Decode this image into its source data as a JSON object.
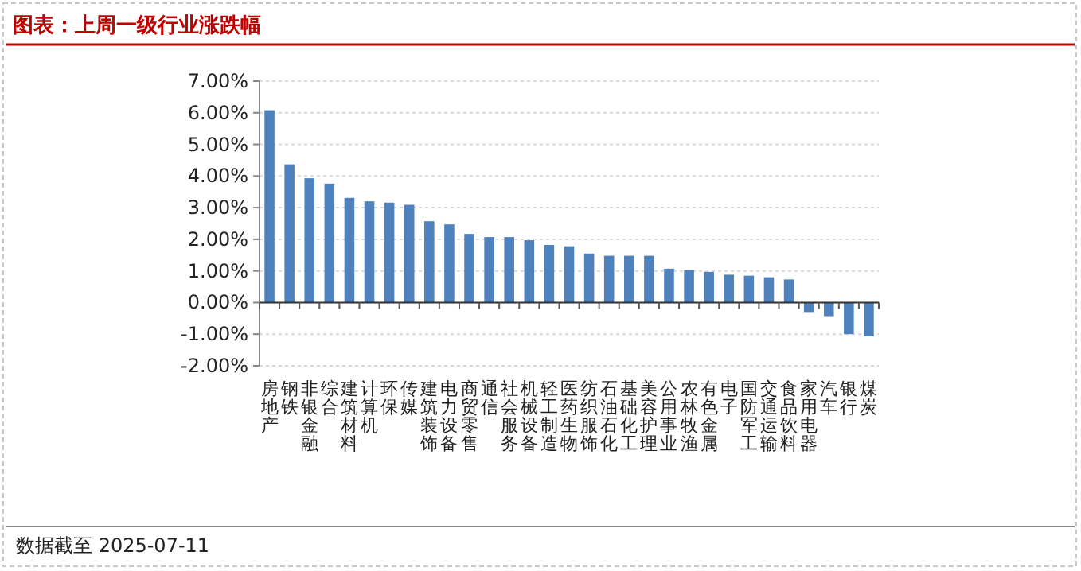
{
  "chart_data": {
    "type": "bar",
    "title": "图表：上周一级行业涨跌幅",
    "categories": [
      "房地产",
      "钢铁",
      "非银金融",
      "综合",
      "建筑材料",
      "计算机",
      "环保",
      "传媒",
      "建筑装饰",
      "电力设备",
      "商贸零售",
      "通信",
      "社会服务",
      "机械设备",
      "轻工制造",
      "医药生物",
      "纺织服饰",
      "石油石化",
      "基础化工",
      "美容护理",
      "公用事业",
      "农林牧渔",
      "有色金属",
      "电子",
      "国防军工",
      "交通运输",
      "食品饮料",
      "家用电器",
      "汽车",
      "银行",
      "煤炭"
    ],
    "values": [
      6.08,
      4.37,
      3.93,
      3.76,
      3.31,
      3.2,
      3.16,
      3.09,
      2.57,
      2.47,
      2.17,
      2.07,
      2.07,
      1.97,
      1.82,
      1.78,
      1.55,
      1.48,
      1.48,
      1.48,
      1.07,
      1.03,
      0.97,
      0.88,
      0.85,
      0.8,
      0.73,
      -0.3,
      -0.43,
      -1.0,
      -1.07
    ],
    "color": "#4f81bd",
    "ylim": [
      -2,
      7
    ],
    "yticks": [
      {
        "value": -2,
        "label": "-2.00%"
      },
      {
        "value": -1,
        "label": "-1.00%"
      },
      {
        "value": 0,
        "label": "0.00%"
      },
      {
        "value": 1,
        "label": "1.00%"
      },
      {
        "value": 2,
        "label": "2.00%"
      },
      {
        "value": 3,
        "label": "3.00%"
      },
      {
        "value": 4,
        "label": "4.00%"
      },
      {
        "value": 5,
        "label": "5.00%"
      },
      {
        "value": 6,
        "label": "6.00%"
      },
      {
        "value": 7,
        "label": "7.00%"
      }
    ],
    "grid": "y",
    "annotations": [
      "数据截至 2025-07-11"
    ]
  }
}
